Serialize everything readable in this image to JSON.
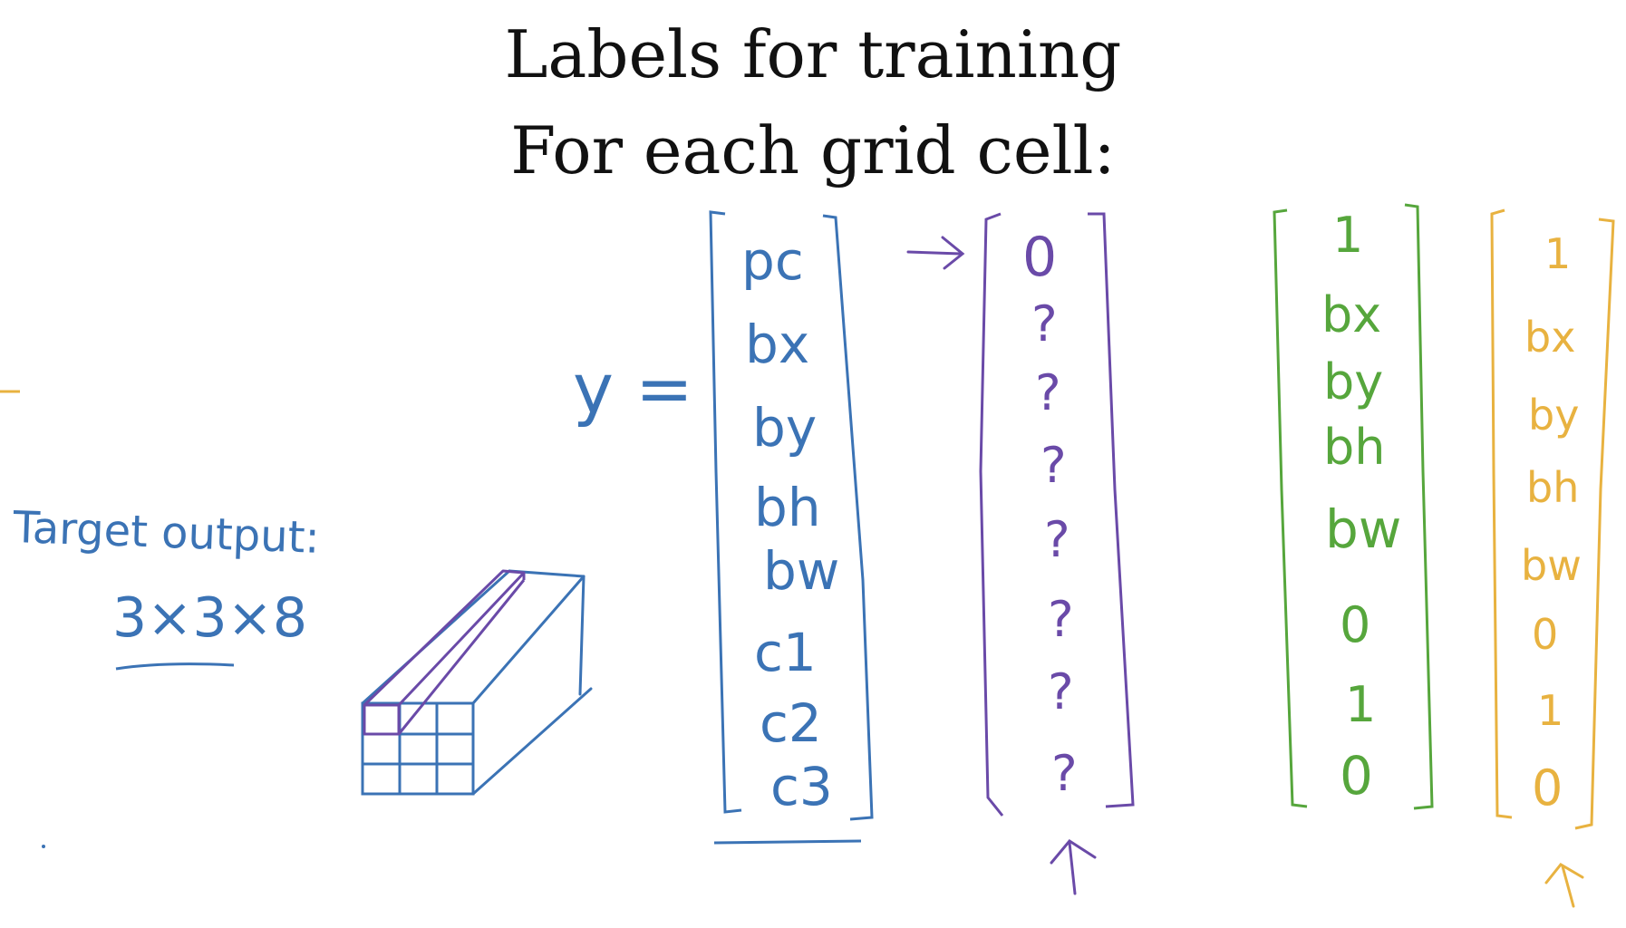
{
  "title": "Labels for training",
  "subtitle": "For each grid cell:",
  "colors": {
    "blue": "#3b73b5",
    "purple": "#6a4aa8",
    "green": "#56a63c",
    "orange": "#e8b240",
    "ink": "#111111"
  },
  "target": {
    "label": "Target output:",
    "dims": "3×3×8"
  },
  "y_label": "y =",
  "vectors": {
    "definition": {
      "items": [
        "pc",
        "bx",
        "by",
        "bh",
        "bw",
        "c1",
        "c2",
        "c3"
      ]
    },
    "background_cell": {
      "items": [
        "0",
        "?",
        "?",
        "?",
        "?",
        "?",
        "?",
        "?"
      ]
    },
    "object_cell_a": {
      "items": [
        "1",
        "bx",
        "by",
        "bh",
        "bw",
        "0",
        "1",
        "0"
      ]
    },
    "object_cell_b": {
      "items": [
        "1",
        "bx",
        "by",
        "bh",
        "bw",
        "0",
        "1",
        "0"
      ]
    }
  },
  "icons": {
    "right_arrow": "arrow-right-icon",
    "up_arrow": "arrow-up-icon"
  }
}
